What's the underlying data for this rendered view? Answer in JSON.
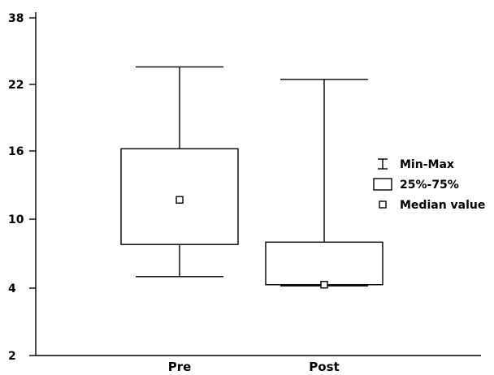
{
  "chart_data": {
    "type": "boxplot",
    "categories": [
      "Pre",
      "Post"
    ],
    "yticks": [
      "2",
      "4",
      "10",
      "16",
      "22",
      "38"
    ],
    "boxes": [
      {
        "category": "Pre",
        "min": 5,
        "q1": 7.8,
        "median": 11.7,
        "q3": 16.2,
        "max": 26.2
      },
      {
        "category": "Post",
        "min": 4.2,
        "q1": 4.3,
        "median": 4.3,
        "q3": 8.0,
        "max": 23.2
      }
    ],
    "legend": [
      {
        "symbol": "min-max",
        "label": "Min-Max"
      },
      {
        "symbol": "box",
        "label": "25%-75%"
      },
      {
        "symbol": "median",
        "label": "Median value"
      }
    ],
    "legend_position": "right",
    "grid": false
  }
}
